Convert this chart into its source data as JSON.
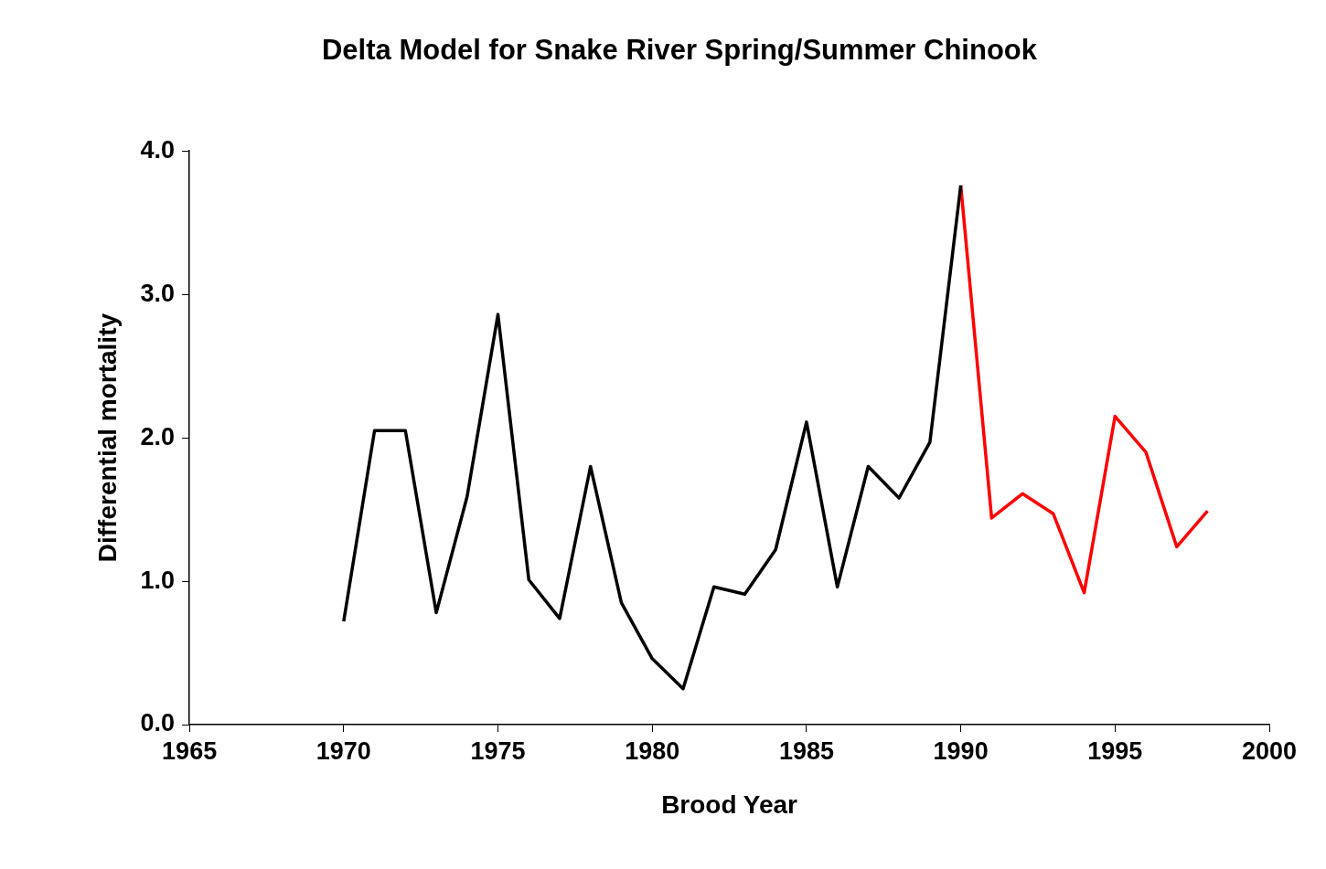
{
  "chart_data": {
    "type": "line",
    "title": "Delta Model for Snake River Spring/Summer Chinook",
    "xlabel": "Brood Year",
    "ylabel": "Differential mortality",
    "series": [
      {
        "color": "#000000",
        "x": [
          1970,
          1971,
          1972,
          1973,
          1974,
          1975,
          1976,
          1977,
          1978,
          1979,
          1980,
          1981,
          1982,
          1983,
          1984,
          1985,
          1986,
          1987,
          1988,
          1989,
          1990
        ],
        "values": [
          0.72,
          2.05,
          2.05,
          0.78,
          1.59,
          2.86,
          1.01,
          0.74,
          1.8,
          0.85,
          0.46,
          0.25,
          0.96,
          0.91,
          1.22,
          2.11,
          0.96,
          1.8,
          1.58,
          1.97,
          3.76
        ]
      },
      {
        "color": "#ff0000",
        "x": [
          1990,
          1991,
          1992,
          1993,
          1994,
          1995,
          1996,
          1997,
          1998
        ],
        "values": [
          3.76,
          1.44,
          1.61,
          1.47,
          0.92,
          2.15,
          1.9,
          1.24,
          1.49
        ]
      }
    ],
    "xlim": [
      1965,
      2000
    ],
    "xticks": [
      1965,
      1970,
      1975,
      1980,
      1985,
      1990,
      1995,
      2000
    ],
    "ylim": [
      0,
      4
    ],
    "yticks": [
      {
        "value": 0,
        "label": "0.0"
      },
      {
        "value": 1,
        "label": "1.0"
      },
      {
        "value": 2,
        "label": "2.0"
      },
      {
        "value": 3,
        "label": "3.0"
      },
      {
        "value": 4,
        "label": "4.0"
      }
    ],
    "grid": false,
    "legend": false,
    "marker": "none",
    "line_style": "solid"
  }
}
